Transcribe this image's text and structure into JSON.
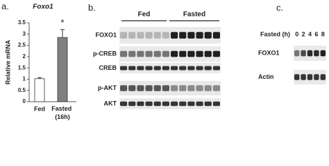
{
  "chart_data": {
    "type": "bar",
    "panel_label": "a.",
    "title": "Foxo1",
    "y_label": "Relative mRNA",
    "categories": [
      "Fed",
      "Fasted (16h)"
    ],
    "values": [
      1.02,
      2.85
    ],
    "errors": [
      0.05,
      0.35
    ],
    "colors": [
      "#ffffff",
      "#808080"
    ],
    "annotation": "*",
    "ylim": [
      0,
      3.5
    ],
    "yticks": [
      0,
      0.5,
      1,
      1.5,
      2,
      2.5,
      3,
      3.5
    ]
  },
  "panel_b": {
    "label": "b.",
    "groups": [
      "Fed",
      "Fasted"
    ],
    "rows": [
      "FOXO1",
      "p-CREB",
      "CREB",
      "p-AKT",
      "AKT"
    ]
  },
  "panel_c": {
    "label": "c.",
    "lane_title": "Fasted (h)",
    "lanes": [
      0,
      2,
      4,
      6,
      8
    ],
    "rows": [
      "FOXO1",
      "Actin"
    ]
  }
}
